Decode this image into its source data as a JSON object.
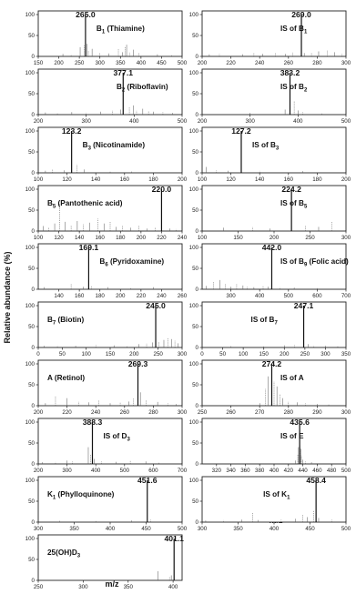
{
  "chart_data": {
    "type": "mass-spectra-panels",
    "ylabel": "Relative abundance (%)",
    "xlabel": "m/z",
    "panels": [
      {
        "compound": "B",
        "sub": "1",
        "suffix": " (Thiamine)",
        "peak": 265.0,
        "peak_label": "265.0",
        "xlim": [
          150,
          500
        ],
        "xticks": [
          150,
          200,
          250,
          300,
          350,
          400,
          450,
          500
        ],
        "yticks": [
          0,
          50,
          100
        ],
        "minor": [
          [
            252,
            22
          ],
          [
            262,
            26
          ],
          [
            268,
            30
          ],
          [
            272,
            14
          ],
          [
            281,
            18
          ],
          [
            300,
            8
          ],
          [
            322,
            7
          ],
          [
            345,
            18
          ],
          [
            355,
            10
          ],
          [
            362,
            22
          ],
          [
            365,
            28
          ],
          [
            372,
            10
          ],
          [
            382,
            16
          ],
          [
            395,
            9
          ],
          [
            210,
            6
          ],
          [
            230,
            5
          ],
          [
            440,
            5
          ],
          [
            475,
            4
          ]
        ]
      },
      {
        "compound": "IS of B",
        "sub": "1",
        "suffix": "",
        "peak": 269.0,
        "peak_label": "269.0",
        "xlim": [
          200,
          300
        ],
        "xticks": [
          200,
          220,
          240,
          260,
          280,
          300
        ],
        "yticks": [
          0,
          50,
          100
        ],
        "minor": [
          [
            205,
            5
          ],
          [
            212,
            6
          ],
          [
            228,
            5
          ],
          [
            236,
            8
          ],
          [
            242,
            6
          ],
          [
            251,
            8
          ],
          [
            258,
            6
          ],
          [
            263,
            10
          ],
          [
            271,
            8
          ],
          [
            276,
            9
          ],
          [
            281,
            12
          ],
          [
            287,
            15
          ],
          [
            292,
            10
          ],
          [
            297,
            6
          ]
        ]
      },
      {
        "compound": "B",
        "sub": "2",
        "suffix": " (Riboflavin)",
        "peak": 377.1,
        "peak_label": "377.1",
        "xlim": [
          200,
          500
        ],
        "xticks": [
          200,
          300,
          400,
          500
        ],
        "yticks": [
          0,
          50,
          100
        ],
        "minor": [
          [
            215,
            5
          ],
          [
            240,
            4
          ],
          [
            270,
            6
          ],
          [
            300,
            5
          ],
          [
            330,
            7
          ],
          [
            355,
            10
          ],
          [
            372,
            12
          ],
          [
            390,
            18
          ],
          [
            398,
            22
          ],
          [
            405,
            10
          ],
          [
            418,
            14
          ],
          [
            430,
            9
          ],
          [
            440,
            7
          ],
          [
            460,
            6
          ],
          [
            480,
            4
          ]
        ]
      },
      {
        "compound": "IS of B",
        "sub": "2",
        "suffix": "",
        "peak": 383.2,
        "peak_label": "383.2",
        "xlim": [
          200,
          500
        ],
        "xticks": [
          200,
          300,
          400,
          500
        ],
        "yticks": [
          0,
          50,
          100
        ],
        "minor": [
          [
            373,
            12
          ],
          [
            392,
            32
          ],
          [
            400,
            10
          ],
          [
            410,
            6
          ],
          [
            300,
            4
          ],
          [
            450,
            4
          ]
        ]
      },
      {
        "compound": "B",
        "sub": "3",
        "suffix": " (Nicotinamide)",
        "peak": 123.2,
        "peak_label": "123.2",
        "xlim": [
          100,
          200
        ],
        "xticks": [
          100,
          120,
          140,
          160,
          180,
          200
        ],
        "yticks": [
          0,
          50,
          100
        ],
        "minor": [
          [
            105,
            5
          ],
          [
            110,
            8
          ],
          [
            118,
            6
          ],
          [
            127,
            20
          ],
          [
            132,
            8
          ],
          [
            150,
            4
          ],
          [
            165,
            3
          ]
        ]
      },
      {
        "compound": "IS of B",
        "sub": "3",
        "suffix": "",
        "peak": 127.2,
        "peak_label": "127.2",
        "xlim": [
          100,
          200
        ],
        "xticks": [
          100,
          120,
          140,
          160,
          180,
          200
        ],
        "yticks": [
          0,
          50,
          100
        ],
        "minor": [
          [
            103,
            14
          ],
          [
            110,
            6
          ],
          [
            118,
            5
          ],
          [
            140,
            5
          ],
          [
            170,
            4
          ]
        ]
      },
      {
        "compound": "B",
        "sub": "5",
        "suffix": " (Pantothenic acid)",
        "peak": 220.0,
        "peak_label": "220.0",
        "xlim": [
          100,
          240
        ],
        "xticks": [
          100,
          120,
          140,
          160,
          180,
          200,
          220,
          240
        ],
        "yticks": [
          0,
          50,
          100
        ],
        "minor": [
          [
            105,
            12
          ],
          [
            110,
            8
          ],
          [
            116,
            18
          ],
          [
            121,
            66
          ],
          [
            126,
            22
          ],
          [
            132,
            14
          ],
          [
            138,
            24
          ],
          [
            144,
            16
          ],
          [
            150,
            20
          ],
          [
            158,
            30
          ],
          [
            164,
            18
          ],
          [
            170,
            22
          ],
          [
            176,
            10
          ],
          [
            182,
            12
          ],
          [
            190,
            8
          ],
          [
            198,
            14
          ],
          [
            206,
            6
          ],
          [
            214,
            8
          ],
          [
            228,
            6
          ],
          [
            234,
            5
          ]
        ]
      },
      {
        "compound": "IS of B",
        "sub": "5",
        "suffix": "",
        "peak": 224.2,
        "peak_label": "224.2",
        "xlim": [
          100,
          300
        ],
        "xticks": [
          100,
          150,
          200,
          250,
          300
        ],
        "yticks": [
          0,
          50,
          100
        ],
        "minor": [
          [
            130,
            8
          ],
          [
            170,
            10
          ],
          [
            194,
            6
          ],
          [
            244,
            12
          ],
          [
            262,
            10
          ],
          [
            280,
            22
          ]
        ]
      },
      {
        "compound": "B",
        "sub": "6",
        "suffix": " (Pyridoxamine)",
        "peak": 169.1,
        "peak_label": "169.1",
        "xlim": [
          120,
          260
        ],
        "xticks": [
          140,
          160,
          180,
          200,
          220,
          240,
          260
        ],
        "yticks": [
          0,
          50,
          100
        ],
        "minor": [
          [
            126,
            5
          ],
          [
            152,
            12
          ],
          [
            164,
            6
          ],
          [
            172,
            7
          ],
          [
            188,
            5
          ],
          [
            210,
            4
          ],
          [
            232,
            5
          ]
        ]
      },
      {
        "compound": "IS of B",
        "sub": "9",
        "suffix": " (Folic acid)",
        "peak": 442.0,
        "peak_label": "442.0",
        "xlim": [
          200,
          700
        ],
        "xticks": [
          300,
          400,
          500,
          600,
          700
        ],
        "yticks": [
          0,
          50,
          100
        ],
        "minor": [
          [
            215,
            8
          ],
          [
            240,
            18
          ],
          [
            262,
            22
          ],
          [
            280,
            12
          ],
          [
            300,
            6
          ],
          [
            320,
            12
          ],
          [
            342,
            9
          ],
          [
            356,
            6
          ],
          [
            380,
            5
          ],
          [
            412,
            7
          ],
          [
            430,
            6
          ],
          [
            470,
            5
          ],
          [
            520,
            4
          ],
          [
            600,
            3
          ]
        ]
      },
      {
        "compound": "B",
        "sub": "7",
        "suffix": " (Biotin)",
        "peak": 245.0,
        "peak_label": "245.0",
        "xlim": [
          0,
          300
        ],
        "xticks": [
          0,
          50,
          100,
          150,
          200,
          250,
          300
        ],
        "yticks": [
          0,
          50,
          100
        ],
        "minor": [
          [
            12,
            4
          ],
          [
            40,
            5
          ],
          [
            78,
            4
          ],
          [
            120,
            6
          ],
          [
            158,
            5
          ],
          [
            185,
            4
          ],
          [
            210,
            8
          ],
          [
            226,
            10
          ],
          [
            238,
            12
          ],
          [
            252,
            14
          ],
          [
            262,
            18
          ],
          [
            270,
            22
          ],
          [
            278,
            20
          ],
          [
            285,
            16
          ],
          [
            292,
            10
          ]
        ]
      },
      {
        "compound": "IS of B",
        "sub": "7",
        "suffix": "",
        "peak": 247.1,
        "peak_label": "247.1",
        "xlim": [
          0,
          350
        ],
        "xticks": [
          0,
          50,
          100,
          150,
          200,
          250,
          300,
          350
        ],
        "yticks": [
          0,
          50,
          100
        ],
        "minor": [
          [
            70,
            3
          ],
          [
            150,
            4
          ],
          [
            200,
            5
          ],
          [
            225,
            6
          ],
          [
            258,
            8
          ],
          [
            272,
            5
          ],
          [
            300,
            4
          ],
          [
            330,
            3
          ]
        ]
      },
      {
        "compound": "A (Retinol)",
        "sub": "",
        "suffix": "",
        "peak": 269.3,
        "peak_label": "269.3",
        "xlim": [
          200,
          300
        ],
        "xticks": [
          200,
          220,
          240,
          260,
          280,
          300
        ],
        "yticks": [
          0,
          50,
          100
        ],
        "minor": [
          [
            205,
            6
          ],
          [
            212,
            22
          ],
          [
            220,
            18
          ],
          [
            228,
            10
          ],
          [
            235,
            8
          ],
          [
            242,
            12
          ],
          [
            250,
            6
          ],
          [
            257,
            7
          ],
          [
            263,
            10
          ],
          [
            266,
            18
          ],
          [
            271,
            32
          ],
          [
            275,
            14
          ],
          [
            283,
            9
          ],
          [
            290,
            6
          ],
          [
            296,
            4
          ]
        ]
      },
      {
        "compound": "IS of A",
        "sub": "",
        "suffix": "",
        "peak": 274.2,
        "peak_label": "274.2",
        "xlim": [
          250,
          300
        ],
        "xticks": [
          250,
          260,
          270,
          280,
          290,
          300
        ],
        "yticks": [
          0,
          50,
          100
        ],
        "minor": [
          [
            270,
            6
          ],
          [
            272,
            40
          ],
          [
            273,
            70
          ],
          [
            275,
            58
          ],
          [
            276,
            46
          ],
          [
            277,
            28
          ],
          [
            278,
            18
          ],
          [
            280,
            10
          ],
          [
            283,
            8
          ],
          [
            286,
            6
          ],
          [
            290,
            4
          ],
          [
            294,
            3
          ]
        ]
      },
      {
        "compound": "IS of D",
        "sub": "3",
        "suffix": "",
        "peak": 388.3,
        "peak_label": "388.3",
        "xlim": [
          200,
          700
        ],
        "xticks": [
          200,
          300,
          400,
          500,
          600,
          700
        ],
        "yticks": [
          0,
          50,
          100
        ],
        "minor": [
          [
            215,
            4
          ],
          [
            260,
            5
          ],
          [
            300,
            8
          ],
          [
            318,
            6
          ],
          [
            374,
            40
          ],
          [
            382,
            22
          ],
          [
            394,
            12
          ],
          [
            420,
            6
          ],
          [
            470,
            5
          ],
          [
            520,
            7
          ],
          [
            574,
            6
          ],
          [
            620,
            4
          ]
        ]
      },
      {
        "compound": "IS of E",
        "sub": "",
        "suffix": "",
        "peak": 435.6,
        "peak_label": "435.6",
        "xlim": [
          300,
          500
        ],
        "xticks": [
          320,
          340,
          360,
          380,
          400,
          420,
          440,
          460,
          480,
          500
        ],
        "yticks": [
          0,
          50,
          100
        ],
        "minor": [
          [
            430,
            8
          ],
          [
            433,
            22
          ],
          [
            434,
            40
          ],
          [
            436,
            44
          ],
          [
            437,
            36
          ],
          [
            438,
            20
          ],
          [
            440,
            10
          ],
          [
            444,
            6
          ],
          [
            452,
            4
          ]
        ]
      },
      {
        "compound": "K",
        "sub": "1",
        "suffix": " (Phylloquinone)",
        "peak": 451.6,
        "peak_label": "451.6",
        "xlim": [
          300,
          500
        ],
        "xticks": [
          300,
          350,
          400,
          450,
          500
        ],
        "yticks": [
          0,
          50,
          100
        ],
        "minor": [
          [
            330,
            3
          ],
          [
            380,
            3
          ],
          [
            430,
            4
          ],
          [
            456,
            6
          ]
        ]
      },
      {
        "compound": "IS of K",
        "sub": "1",
        "suffix": "",
        "peak": 458.4,
        "peak_label": "458.4",
        "xlim": [
          300,
          500
        ],
        "xticks": [
          300,
          350,
          400,
          450,
          500
        ],
        "yticks": [
          0,
          50,
          100
        ],
        "minor": [
          [
            305,
            4
          ],
          [
            330,
            5
          ],
          [
            355,
            6
          ],
          [
            370,
            22
          ],
          [
            378,
            5
          ],
          [
            410,
            6
          ],
          [
            430,
            8
          ],
          [
            440,
            18
          ],
          [
            446,
            12
          ],
          [
            455,
            28
          ],
          [
            462,
            10
          ],
          [
            480,
            6
          ]
        ]
      },
      {
        "compound": "25(OH)D",
        "sub": "3",
        "suffix": "",
        "peak": 401.1,
        "peak_label": "401.1",
        "xlim": [
          250,
          410
        ],
        "xticks": [
          250,
          300,
          350,
          400
        ],
        "yticks": [
          0,
          50,
          100
        ],
        "minor": [
          [
            383,
            22
          ],
          [
            396,
            8
          ],
          [
            398,
            12
          ]
        ]
      }
    ]
  }
}
